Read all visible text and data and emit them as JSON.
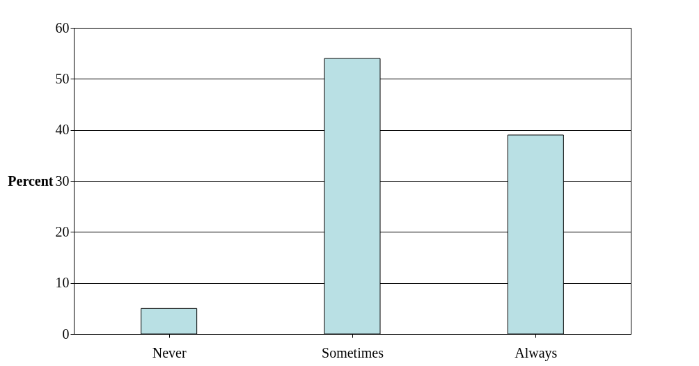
{
  "chart_data": {
    "type": "bar",
    "ylabel": "Percent",
    "categories": [
      "Never",
      "Sometimes",
      "Always"
    ],
    "values": [
      5,
      54,
      39
    ],
    "color": "#b9e0e4",
    "ylim": [
      0,
      60
    ],
    "yticks": [
      0,
      10,
      20,
      30,
      40,
      50,
      60
    ],
    "grid": "y"
  }
}
